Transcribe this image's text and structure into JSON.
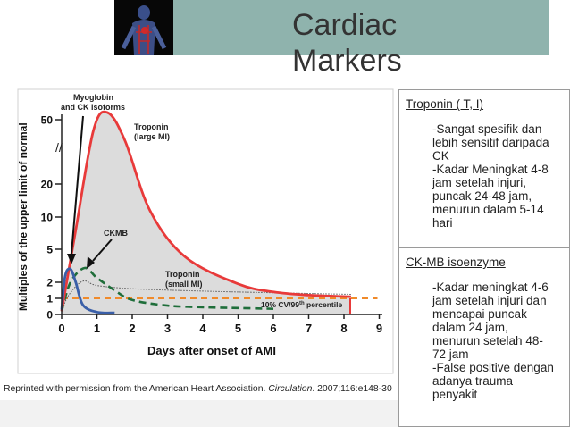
{
  "slide": {
    "title_line1": "Cardiac",
    "title_line2": "Markers",
    "caption_pre": "Reprinted with permission from the American Heart Association. ",
    "caption_journal": "Circulation",
    "caption_post": ". 2007;116:e148-30"
  },
  "troponin_box": {
    "heading": "Troponin ( T, I)",
    "lines": [
      "-Sangat spesifik dan lebih sensitif daripada  CK",
      "-Kadar Meningkat 4-8  jam setelah injuri,  puncak 24-48 jam,",
      "menurun dalam 5-14  hari"
    ]
  },
  "ckmb_box": {
    "heading": "CK-MB isoenzyme",
    "lines": [
      "-Kadar meningkat 4-6  jam setelah injuri dan  mencapai puncak  dalam 24 jam,",
      "menurun setelah 48-",
      "72 jam",
      "-False positive dengan  adanya trauma  penyakit"
    ]
  },
  "chart_data": {
    "type": "line",
    "xlabel": "Days after onset of AMI",
    "ylabel": "Multiples of the upper limit of normal",
    "x_ticks": [
      "0",
      "1",
      "2",
      "3",
      "4",
      "5",
      "6",
      "7",
      "8",
      "9"
    ],
    "y_ticks": [
      "0",
      "1",
      "2",
      "5",
      "10",
      "20",
      "50"
    ],
    "y_scale": "broken axis (//) between 5-10 region, nonlinear",
    "annotations": [
      "Myoglobin and CK isoforms",
      "Troponin (large MI)",
      "CKMB",
      "Troponin (small MI)",
      "10% CV/99th percentile"
    ],
    "colors": {
      "troponin_large": "#e83a3a",
      "myoglobin": "#3a5fa8",
      "ckmb": "#1f6e3a",
      "reference": "#f08a2a",
      "fill": "#dcdcdc"
    },
    "series": [
      {
        "name": "Myoglobin and CK isoforms",
        "x": [
          0,
          0.1,
          0.25,
          0.4,
          0.6,
          1.0,
          1.5
        ],
        "y": [
          0.3,
          2.6,
          3.2,
          2.0,
          0.6,
          0.15,
          0.1
        ]
      },
      {
        "name": "Troponin (large MI)",
        "x": [
          0,
          0.4,
          0.9,
          1.3,
          1.8,
          2.5,
          3.5,
          5,
          6,
          7,
          8.2
        ],
        "y": [
          0.2,
          8,
          45,
          55,
          40,
          12,
          4.3,
          1.9,
          1.4,
          1.2,
          1.1
        ]
      },
      {
        "name": "CKMB",
        "x": [
          0,
          0.25,
          0.65,
          1.0,
          1.5,
          2.0,
          3.0,
          4.0,
          5.0,
          6.0
        ],
        "y": [
          0.2,
          2.0,
          3.3,
          2.4,
          1.5,
          0.9,
          0.55,
          0.45,
          0.4,
          0.35
        ]
      },
      {
        "name": "Troponin (small MI)",
        "x": [
          0,
          0.2,
          0.6,
          1.0,
          2.0,
          4.0,
          6.0,
          8.2
        ],
        "y": [
          0.2,
          1.2,
          2.1,
          1.8,
          1.6,
          1.45,
          1.35,
          1.25
        ]
      },
      {
        "name": "10% CV/99th percentile",
        "x": [
          0,
          9
        ],
        "y": [
          1,
          1
        ]
      }
    ]
  }
}
